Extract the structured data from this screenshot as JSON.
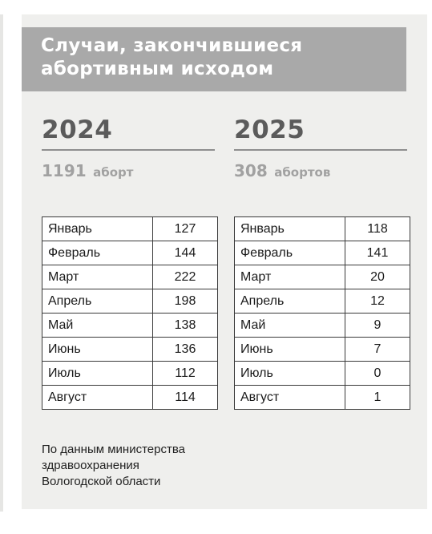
{
  "header": {
    "title": "Случаи, закончившиеся\nабортивным исходом"
  },
  "years": [
    {
      "year": "2024",
      "count": "1191",
      "unit": "аборт",
      "months": [
        {
          "month": "Январь",
          "value": "127"
        },
        {
          "month": "Февраль",
          "value": "144"
        },
        {
          "month": "Март",
          "value": "222"
        },
        {
          "month": "Апрель",
          "value": "198"
        },
        {
          "month": "Май",
          "value": "138"
        },
        {
          "month": "Июнь",
          "value": "136"
        },
        {
          "month": "Июль",
          "value": "112"
        },
        {
          "month": "Август",
          "value": "114"
        }
      ]
    },
    {
      "year": "2025",
      "count": "308",
      "unit": "абортов",
      "months": [
        {
          "month": "Январь",
          "value": "118"
        },
        {
          "month": "Февраль",
          "value": "141"
        },
        {
          "month": "Март",
          "value": "20"
        },
        {
          "month": "Апрель",
          "value": "12"
        },
        {
          "month": "Май",
          "value": "9"
        },
        {
          "month": "Июнь",
          "value": "7"
        },
        {
          "month": "Июль",
          "value": "0"
        },
        {
          "month": "Август",
          "value": "1"
        }
      ]
    }
  ],
  "source": {
    "lines": [
      "По данным министерства",
      "здравоохранения",
      "Вологодской области"
    ]
  },
  "colors": {
    "header_bg": "#a9a9a9",
    "panel_bg": "#efefed",
    "year_text": "#5b5b5b",
    "count_text": "#a1a1a1"
  }
}
